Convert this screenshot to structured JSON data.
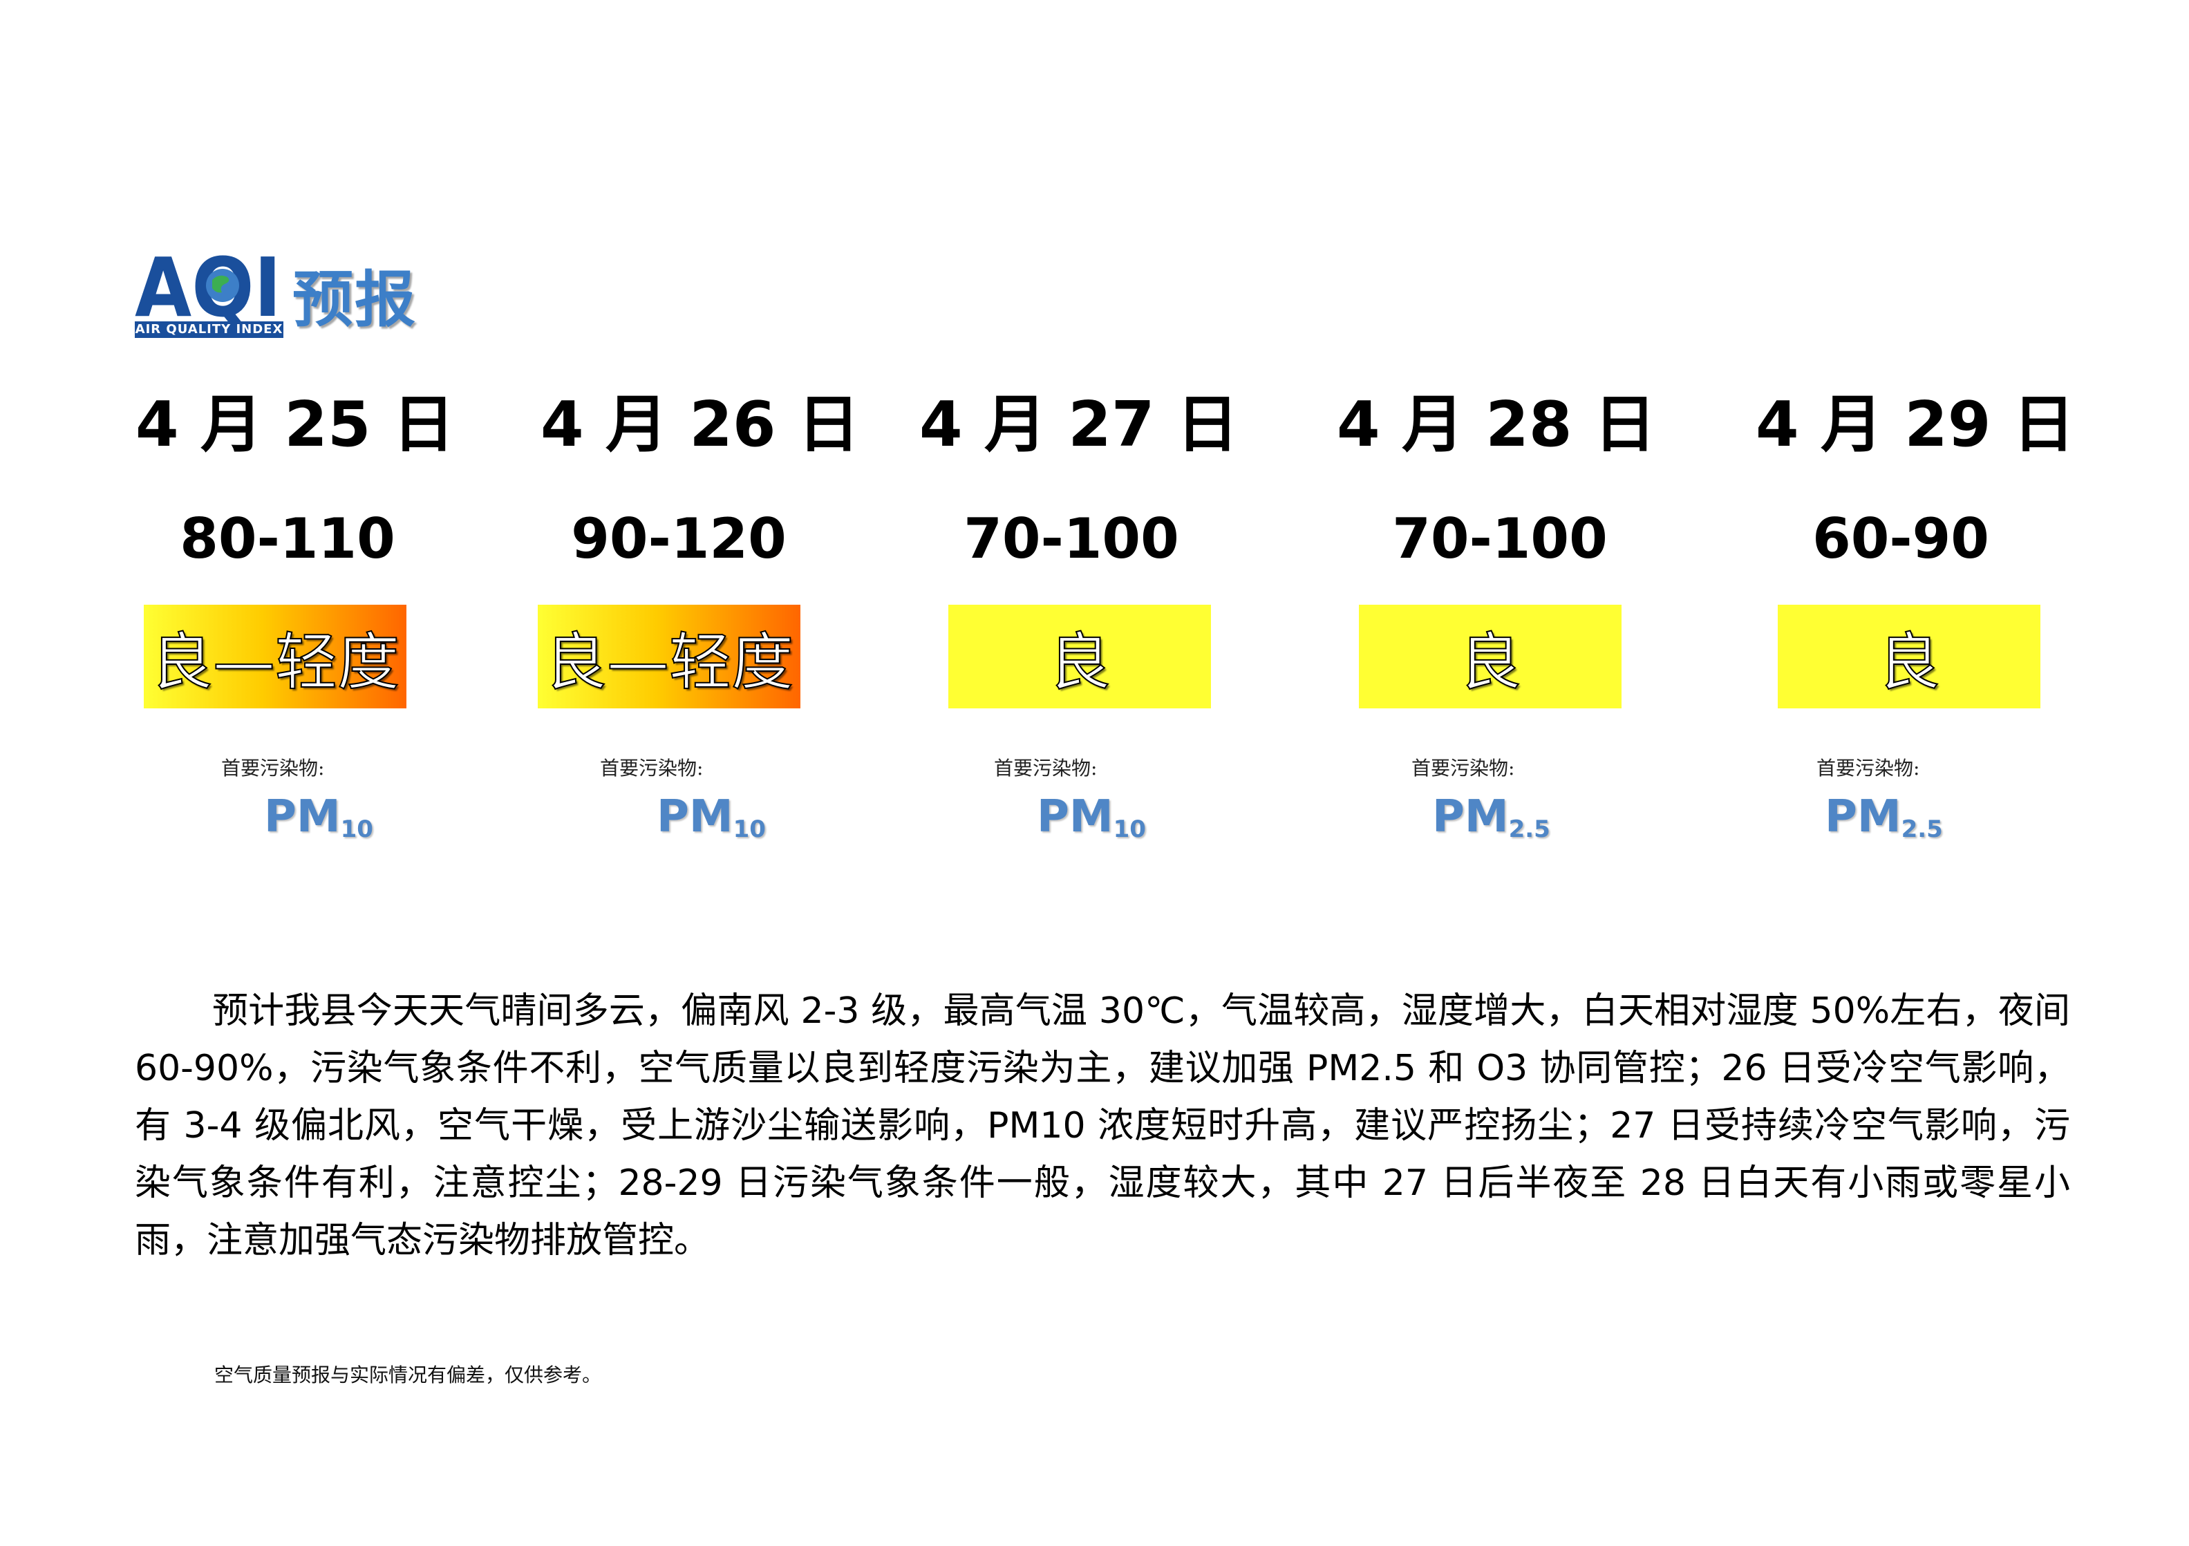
{
  "logo": {
    "letters": "AQI",
    "subtitle": "AIR QUALITY INDEX",
    "title": "预报"
  },
  "days": [
    {
      "date": "4 月 25 日",
      "range": "80-110",
      "level": "良—轻度",
      "pollutant_label": "首要污染物:",
      "pollutant": "PM",
      "pollutant_sub": "10",
      "badge_color": "gradient"
    },
    {
      "date": "4 月 26 日",
      "range": "90-120",
      "level": "良—轻度",
      "pollutant_label": "首要污染物:",
      "pollutant": "PM",
      "pollutant_sub": "10",
      "badge_color": "gradient"
    },
    {
      "date": "4 月 27 日",
      "range": "70-100",
      "level": "良",
      "pollutant_label": "首要污染物:",
      "pollutant": "PM",
      "pollutant_sub": "10",
      "badge_color": "#ffff33"
    },
    {
      "date": "4 月 28 日",
      "range": "70-100",
      "level": "良",
      "pollutant_label": "首要污染物:",
      "pollutant": "PM",
      "pollutant_sub": "2.5",
      "badge_color": "#ffff33"
    },
    {
      "date": "4 月 29 日",
      "range": "60-90",
      "level": "良",
      "pollutant_label": "首要污染物:",
      "pollutant": "PM",
      "pollutant_sub": "2.5",
      "badge_color": "#ffff33"
    }
  ],
  "description": "预计我县今天天气晴间多云，偏南风 2-3 级，最高气温 30℃，气温较高，湿度增大，白天相对湿度 50%左右，夜间 60-90%，污染气象条件不利，空气质量以良到轻度污染为主，建议加强 PM2.5 和 O3 协同管控；26 日受冷空气影响，有 3-4 级偏北风，空气干燥，受上游沙尘输送影响，PM10 浓度短时升高，建议严控扬尘；27 日受持续冷空气影响，污染气象条件有利，注意控尘；28-29 日污染气象条件一般，湿度较大，其中 27 日后半夜至 28 日白天有小雨或零星小雨，注意加强气态污染物排放管控。",
  "note": "空气质量预报与实际情况有偏差，仅供参考。"
}
